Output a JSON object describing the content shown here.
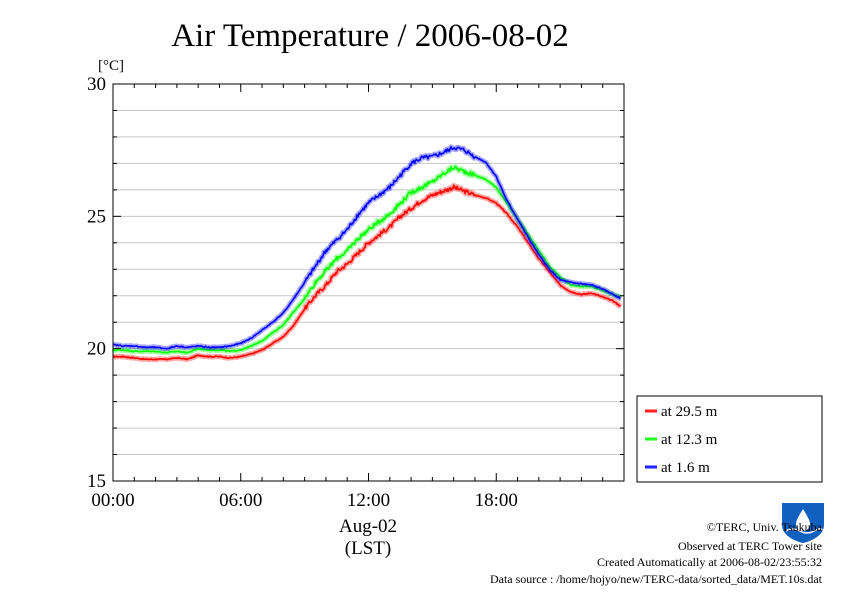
{
  "chart_data": {
    "type": "line",
    "title": "Air Temperature / 2006-08-02",
    "ylabel": "[°C]",
    "xlabel": "(LST)",
    "x_date_label": "Aug-02",
    "ylim": [
      15,
      30
    ],
    "yticks": [
      "15",
      "20",
      "25",
      "30"
    ],
    "xlim": [
      "00:00",
      "24:00"
    ],
    "xticks": [
      "00:00",
      "06:00",
      "12:00",
      "18:00"
    ],
    "grid": true,
    "legend_position": "bottom-right, outside plot",
    "x": [
      "00:00",
      "00:30",
      "01:00",
      "01:30",
      "02:00",
      "02:30",
      "03:00",
      "03:30",
      "04:00",
      "04:30",
      "05:00",
      "05:30",
      "06:00",
      "06:30",
      "07:00",
      "07:30",
      "08:00",
      "08:30",
      "09:00",
      "09:30",
      "10:00",
      "10:30",
      "11:00",
      "11:30",
      "12:00",
      "12:30",
      "13:00",
      "13:30",
      "14:00",
      "14:30",
      "15:00",
      "15:30",
      "16:00",
      "16:30",
      "17:00",
      "17:30",
      "18:00",
      "18:30",
      "19:00",
      "19:30",
      "20:00",
      "20:30",
      "21:00",
      "21:30",
      "22:00",
      "22:30",
      "23:00",
      "23:30",
      "23:50"
    ],
    "series": [
      {
        "name": "at 29.5 m",
        "color": "#ff0000",
        "values": [
          19.7,
          19.7,
          19.65,
          19.6,
          19.6,
          19.6,
          19.65,
          19.6,
          19.75,
          19.7,
          19.7,
          19.65,
          19.7,
          19.8,
          19.95,
          20.2,
          20.45,
          20.9,
          21.5,
          22.0,
          22.4,
          22.9,
          23.2,
          23.6,
          24.0,
          24.3,
          24.6,
          25.0,
          25.3,
          25.6,
          25.8,
          25.95,
          26.1,
          25.95,
          25.8,
          25.7,
          25.5,
          25.1,
          24.6,
          24.0,
          23.4,
          22.9,
          22.4,
          22.15,
          22.05,
          22.1,
          21.95,
          21.8,
          21.6
        ]
      },
      {
        "name": "at 12.3 m",
        "color": "#00ff00",
        "values": [
          19.95,
          19.95,
          19.9,
          19.9,
          19.9,
          19.85,
          19.9,
          19.85,
          20.0,
          19.95,
          19.95,
          19.9,
          19.95,
          20.1,
          20.3,
          20.6,
          20.9,
          21.4,
          21.9,
          22.5,
          22.95,
          23.4,
          23.7,
          24.15,
          24.5,
          24.8,
          25.1,
          25.5,
          25.9,
          26.1,
          26.3,
          26.6,
          26.85,
          26.7,
          26.55,
          26.4,
          26.1,
          25.5,
          24.9,
          24.3,
          23.7,
          23.1,
          22.7,
          22.4,
          22.35,
          22.35,
          22.2,
          22.05,
          21.95
        ]
      },
      {
        "name": "at 1.6 m",
        "color": "#0000ff",
        "values": [
          20.15,
          20.1,
          20.1,
          20.05,
          20.05,
          20.0,
          20.1,
          20.05,
          20.1,
          20.05,
          20.05,
          20.1,
          20.2,
          20.4,
          20.7,
          21.0,
          21.35,
          21.9,
          22.5,
          23.1,
          23.7,
          24.1,
          24.5,
          25.05,
          25.5,
          25.8,
          26.1,
          26.55,
          27.0,
          27.2,
          27.25,
          27.4,
          27.6,
          27.5,
          27.25,
          27.05,
          26.5,
          25.6,
          24.9,
          24.2,
          23.55,
          23.0,
          22.6,
          22.5,
          22.45,
          22.4,
          22.25,
          22.05,
          21.9
        ]
      }
    ]
  },
  "credits": {
    "copyright": "©TERC, Univ. Tsukuba",
    "observed": "Observed at TERC Tower site",
    "created": "Created Automatically at 2006-08-02/23:55:32",
    "source": "Data source : /home/hojyo/new/TERC-data/sorted_data/MET.10s.dat"
  },
  "logo": {
    "text": "TERC",
    "color": "#1060c0",
    "icon_name": "terc-logo-icon"
  }
}
